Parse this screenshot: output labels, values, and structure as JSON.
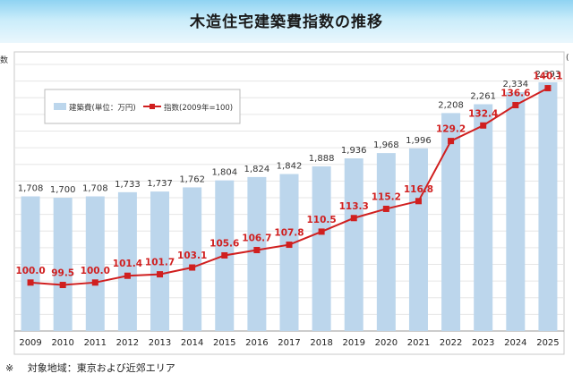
{
  "header": {
    "title": "木造住宅建築費指数の推移"
  },
  "left_axis_label_fragment": "数",
  "right_axis_label_fragment": "(",
  "footnote": {
    "mark": "※",
    "text": "対象地域：東京および近郊エリア"
  },
  "chart_data": {
    "type": "bar+line",
    "title": "木造住宅建築費指数の推移",
    "categories": [
      "2009",
      "2010",
      "2011",
      "2012",
      "2013",
      "2014",
      "2015",
      "2016",
      "2017",
      "2018",
      "2019",
      "2020",
      "2021",
      "2022",
      "2023",
      "2024",
      "2025"
    ],
    "series": [
      {
        "name": "建築費(単位：万円)",
        "type": "bar",
        "color": "#bcd6ec",
        "values": [
          1708,
          1700,
          1708,
          1733,
          1737,
          1762,
          1804,
          1824,
          1842,
          1888,
          1936,
          1968,
          1996,
          2208,
          2261,
          2334,
          2393
        ],
        "labels": [
          "1,708",
          "1,700",
          "1,708",
          "1,733",
          "1,737",
          "1,762",
          "1,804",
          "1,824",
          "1,842",
          "1,888",
          "1,936",
          "1,968",
          "1,996",
          "2,208",
          "2,261",
          "2,334",
          "2,393"
        ]
      },
      {
        "name": "指数(2009年=100)",
        "type": "line",
        "color": "#d01f1f",
        "values": [
          100.0,
          99.5,
          100.0,
          101.4,
          101.7,
          103.1,
          105.6,
          106.7,
          107.8,
          110.5,
          113.3,
          115.2,
          116.8,
          129.2,
          132.4,
          136.6,
          140.1
        ],
        "labels": [
          "100.0",
          "99.5",
          "100.0",
          "101.4",
          "101.7",
          "103.1",
          "105.6",
          "106.7",
          "107.8",
          "110.5",
          "113.3",
          "115.2",
          "116.8",
          "129.2",
          "132.4",
          "136.6",
          "140.1"
        ]
      }
    ],
    "legend_placement": "top-left",
    "grid": true,
    "bar_axis_range": [
      900,
      2500
    ],
    "index_axis_range": [
      90,
      145
    ]
  }
}
